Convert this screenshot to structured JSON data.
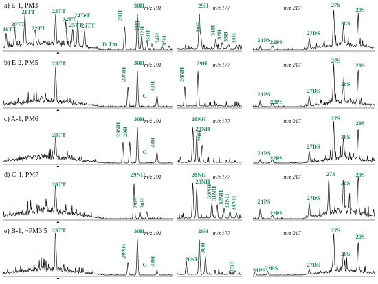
{
  "chart_data": {
    "type": "line",
    "rows": [
      {
        "title": "a) E-1, PM3",
        "m191": {
          "mz": "m/z 191",
          "labels": [
            "19TT",
            "20TT",
            "21TT",
            "22TT",
            "23TT",
            "24TT",
            "24TeT",
            "25TT",
            "26TT",
            "Ts",
            "Tm",
            "29H",
            "30H",
            "31H",
            "32H",
            "33H",
            "34H",
            "35H"
          ],
          "main_peak": "30H"
        },
        "m177": {
          "mz": "m/z 177",
          "labels": [
            "29H",
            "30H",
            "31H",
            "32H",
            "33H",
            "34H"
          ],
          "main_peak": "29H"
        },
        "m217": {
          "mz": "m/z 217",
          "labels": [
            "21PS",
            "22PS",
            "27DS",
            "27S",
            "28S",
            "29S"
          ],
          "main_peak": "27S"
        }
      },
      {
        "title": "b) E-2, PM5",
        "m191": {
          "mz": "m/z 191",
          "labels": [
            "23TT",
            "29NH",
            "30H",
            "G",
            "33H"
          ],
          "main_peak": "30H"
        },
        "m177": {
          "mz": "m/z 177",
          "labels": [
            "28NH",
            "29H"
          ],
          "main_peak": "29H"
        },
        "m217": {
          "mz": "m/z 217",
          "labels": [
            "21PS",
            "22PS",
            "27DS",
            "27S",
            "28S",
            "29S"
          ],
          "main_peak": "27S"
        }
      },
      {
        "title": "c) A-1, PM6",
        "m191": {
          "mz": "m/z 191",
          "labels": [
            "23TT",
            "29NH",
            "29H",
            "30H",
            "G",
            "33H"
          ],
          "main_peak": "30H"
        },
        "m177": {
          "mz": "m/z 177",
          "labels": [
            "28NH",
            "29NH",
            "29H"
          ],
          "main_peak": "28NH"
        },
        "m217": {
          "mz": "m/z 217",
          "labels": [
            "21PS",
            "22PS",
            "27DS",
            "27S",
            "28S",
            "29S"
          ],
          "main_peak": "27S"
        }
      },
      {
        "title": "d) C-1, PM7",
        "m191": {
          "mz": "m/z 191",
          "labels": [
            "23TT",
            "29NH",
            "29H",
            "30H"
          ],
          "main_peak": "29NH"
        },
        "m177": {
          "mz": "m/z 177",
          "labels": [
            "28NH",
            "29NH",
            "30NH",
            "31NH",
            "32NH",
            "33NH",
            "34NH"
          ],
          "main_peak": "28NH"
        },
        "m217": {
          "mz": "m/z 217",
          "labels": [
            "21PS",
            "22PS",
            "27DS",
            "27S",
            "28S",
            "29S"
          ],
          "main_peak": "29S"
        }
      },
      {
        "title": "e) B-1, ~PM3.5",
        "m191": {
          "mz": "m/z 191",
          "labels": [
            "23TT",
            "29NH",
            "30H",
            "G",
            "33H"
          ],
          "main_peak": "30H"
        },
        "m177": {
          "mz": "m/z 177",
          "labels": [
            "29H",
            "28NH",
            "30H",
            "33H"
          ],
          "main_peak": "29H"
        },
        "m217": {
          "mz": "m/z 217",
          "labels": [
            "21PS",
            "22PS",
            "27DS",
            "27S",
            "28S",
            "29S"
          ],
          "main_peak": "27S"
        }
      }
    ]
  }
}
